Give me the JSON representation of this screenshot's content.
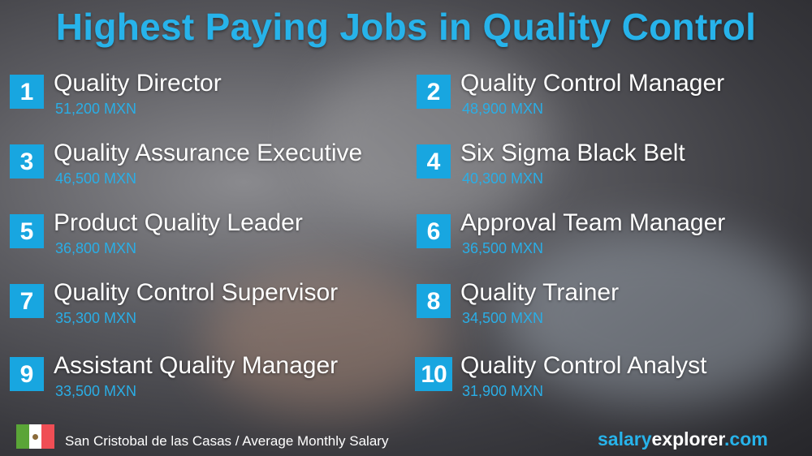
{
  "title": "Highest Paying Jobs in Quality Control",
  "jobs": [
    {
      "rank": "1",
      "title": "Quality Director",
      "salary": "51,200 MXN"
    },
    {
      "rank": "2",
      "title": "Quality Control Manager",
      "salary": "48,900 MXN"
    },
    {
      "rank": "3",
      "title": "Quality Assurance Executive",
      "salary": "46,500 MXN"
    },
    {
      "rank": "4",
      "title": "Six Sigma Black Belt",
      "salary": "40,300 MXN"
    },
    {
      "rank": "5",
      "title": "Product Quality Leader",
      "salary": "36,800 MXN"
    },
    {
      "rank": "6",
      "title": "Approval Team Manager",
      "salary": "36,500 MXN"
    },
    {
      "rank": "7",
      "title": "Quality Control Supervisor",
      "salary": "35,300 MXN"
    },
    {
      "rank": "8",
      "title": "Quality Trainer",
      "salary": "34,500 MXN"
    },
    {
      "rank": "9",
      "title": "Assistant Quality Manager",
      "salary": "33,500 MXN"
    },
    {
      "rank": "10",
      "title": "Quality Control Analyst",
      "salary": "31,900 MXN"
    }
  ],
  "footer": {
    "flag": "mexico-flag",
    "location_text": "San Cristobal de las Casas / Average Monthly Salary"
  },
  "brand": {
    "part1": "salary",
    "part2": "explorer",
    "part3": ".com"
  },
  "colors": {
    "accent": "#18a6e0",
    "title": "#27b3ea",
    "salary": "#2aaee6"
  }
}
